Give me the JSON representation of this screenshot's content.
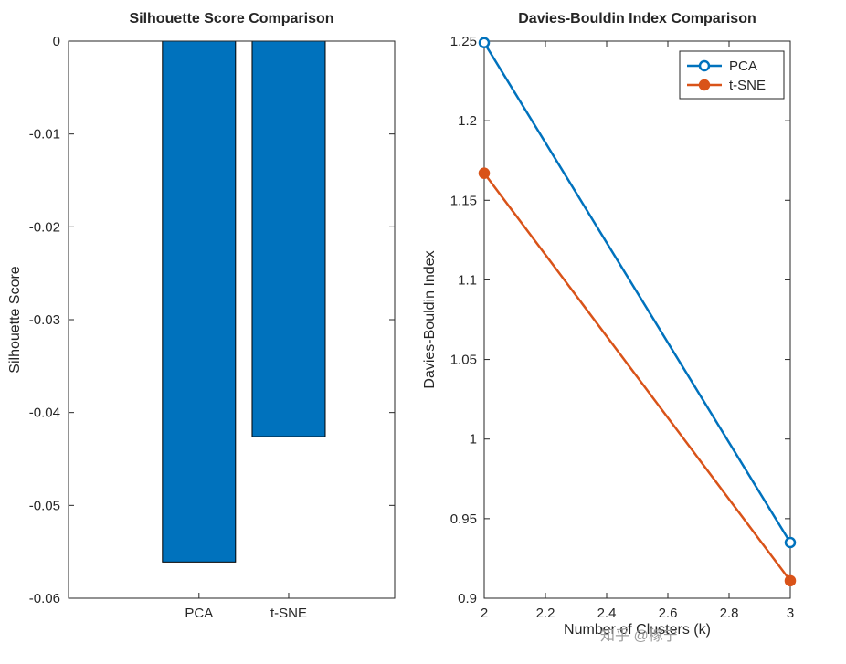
{
  "figure": {
    "background": "#ffffff",
    "axis_color": "#262626",
    "text_color": "#262626",
    "watermark": "知乎 @稼宁"
  },
  "chart_data": [
    {
      "type": "bar",
      "title": "Silhouette Score Comparison",
      "xlabel": "",
      "ylabel": "Silhouette Score",
      "categories": [
        "PCA",
        "t-SNE"
      ],
      "values": [
        -0.0561,
        -0.0426
      ],
      "ylim": [
        -0.06,
        0
      ],
      "yticks": [
        0,
        -0.01,
        -0.02,
        -0.03,
        -0.04,
        -0.05,
        -0.06
      ],
      "ytick_labels": [
        "0",
        "-0.01",
        "-0.02",
        "-0.03",
        "-0.04",
        "-0.05",
        "-0.06"
      ],
      "bar_color": "#0072BD",
      "bar_edge_color": "#000000",
      "grid": false,
      "legend": null
    },
    {
      "type": "line",
      "title": "Davies-Bouldin Index Comparison",
      "xlabel": "Number of Clusters (k)",
      "ylabel": "Davies-Bouldin Index",
      "x": [
        2,
        3
      ],
      "series": [
        {
          "name": "PCA",
          "values": [
            1.249,
            0.935
          ],
          "color": "#0072BD",
          "marker": "open-circle"
        },
        {
          "name": "t-SNE",
          "values": [
            1.167,
            0.911
          ],
          "color": "#D95319",
          "marker": "filled-circle"
        }
      ],
      "xlim": [
        2,
        3
      ],
      "ylim": [
        0.9,
        1.25
      ],
      "xticks": [
        2,
        2.2,
        2.4,
        2.6,
        2.8,
        3
      ],
      "xtick_labels": [
        "2",
        "2.2",
        "2.4",
        "2.6",
        "2.8",
        "3"
      ],
      "yticks": [
        0.9,
        0.95,
        1.0,
        1.05,
        1.1,
        1.15,
        1.2,
        1.25
      ],
      "ytick_labels": [
        "0.9",
        "0.95",
        "1",
        "1.05",
        "1.1",
        "1.15",
        "1.2",
        "1.25"
      ],
      "grid": false,
      "legend": {
        "position": "top-right"
      }
    }
  ]
}
